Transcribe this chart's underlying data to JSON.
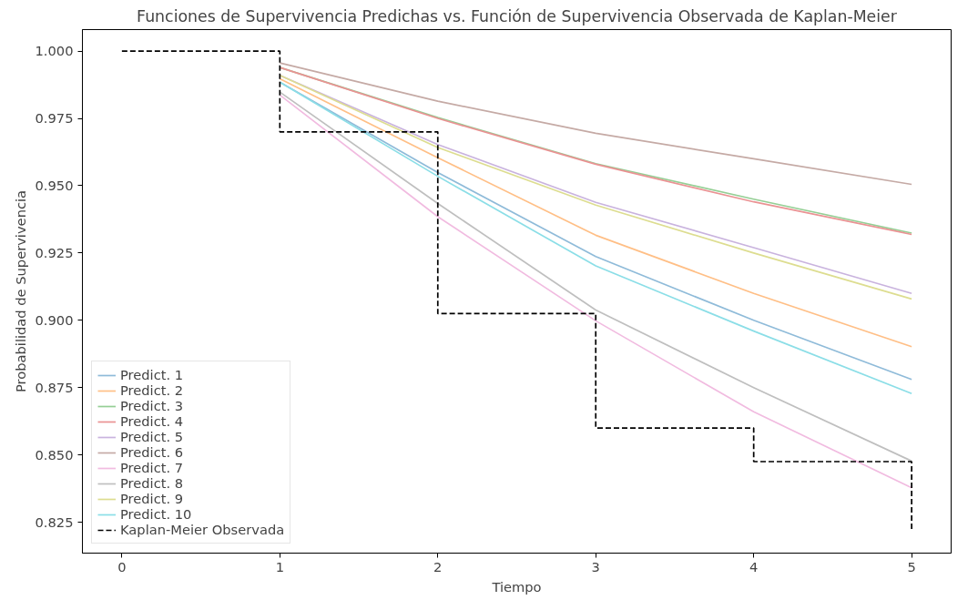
{
  "chart_data": {
    "type": "line",
    "title": "Funciones de Supervivencia Predichas vs. Función de Supervivencia Observada de Kaplan-Meier",
    "xlabel": "Tiempo",
    "ylabel": "Probabilidad de Supervivencia",
    "xlim": [
      -0.25,
      5.25
    ],
    "ylim": [
      0.8135,
      1.008
    ],
    "xticks": [
      0,
      1,
      2,
      3,
      4,
      5
    ],
    "yticks": [
      {
        "value": 0.825,
        "label": "0.825"
      },
      {
        "value": 0.85,
        "label": "0.850"
      },
      {
        "value": 0.875,
        "label": "0.875"
      },
      {
        "value": 0.9,
        "label": "0.900"
      },
      {
        "value": 0.925,
        "label": "0.925"
      },
      {
        "value": 0.95,
        "label": "0.950"
      },
      {
        "value": 0.975,
        "label": "0.975"
      },
      {
        "value": 1.0,
        "label": "1.000"
      }
    ],
    "grid": false,
    "legend": "bottom left",
    "marker": "none",
    "series": [
      {
        "name": "Predict. 1",
        "color": "#8fbbd9",
        "x": [
          1,
          2,
          3,
          4,
          5
        ],
        "values": [
          0.9885,
          0.9549,
          0.9237,
          0.9,
          0.878
        ]
      },
      {
        "name": "Predict. 2",
        "color": "#ffbf86",
        "x": [
          1,
          2,
          3,
          4,
          5
        ],
        "values": [
          0.9897,
          0.9604,
          0.9316,
          0.91,
          0.8902
        ]
      },
      {
        "name": "Predict. 3",
        "color": "#95cf95",
        "x": [
          1,
          2,
          3,
          4,
          5
        ],
        "values": [
          0.9939,
          0.9753,
          0.9582,
          0.945,
          0.9324
        ]
      },
      {
        "name": "Predict. 4",
        "color": "#ea9293",
        "x": [
          1,
          2,
          3,
          4,
          5
        ],
        "values": [
          0.9939,
          0.975,
          0.958,
          0.944,
          0.9319
        ]
      },
      {
        "name": "Predict. 5",
        "color": "#c9b3de",
        "x": [
          1,
          2,
          3,
          4,
          5
        ],
        "values": [
          0.991,
          0.9653,
          0.9438,
          0.927,
          0.91
        ]
      },
      {
        "name": "Predict. 6",
        "color": "#c5aaa5",
        "x": [
          1,
          2,
          3,
          4,
          5
        ],
        "values": [
          0.9956,
          0.9814,
          0.9695,
          0.96,
          0.9505
        ]
      },
      {
        "name": "Predict. 7",
        "color": "#f1bbe0",
        "x": [
          1,
          2,
          3,
          4,
          5
        ],
        "values": [
          0.9837,
          0.9385,
          0.8998,
          0.866,
          0.8378
        ]
      },
      {
        "name": "Predict. 8",
        "color": "#bfbfbf",
        "x": [
          1,
          2,
          3,
          4,
          5
        ],
        "values": [
          0.9848,
          0.9434,
          0.9038,
          0.875,
          0.8477
        ]
      },
      {
        "name": "Predict. 9",
        "color": "#dddd90",
        "x": [
          1,
          2,
          3,
          4,
          5
        ],
        "values": [
          0.991,
          0.9642,
          0.9428,
          0.925,
          0.9079
        ]
      },
      {
        "name": "Predict. 10",
        "color": "#8bdee7",
        "x": [
          1,
          2,
          3,
          4,
          5
        ],
        "values": [
          0.9885,
          0.9535,
          0.9202,
          0.896,
          0.8728
        ]
      },
      {
        "name": "Kaplan-Meier Observada",
        "type": "step",
        "color": "#000000",
        "line_style": "dashed",
        "x": [
          0,
          1,
          2,
          3,
          4,
          5
        ],
        "values": [
          1.0,
          0.97,
          0.9025,
          0.86,
          0.8475,
          0.8225
        ]
      }
    ]
  }
}
